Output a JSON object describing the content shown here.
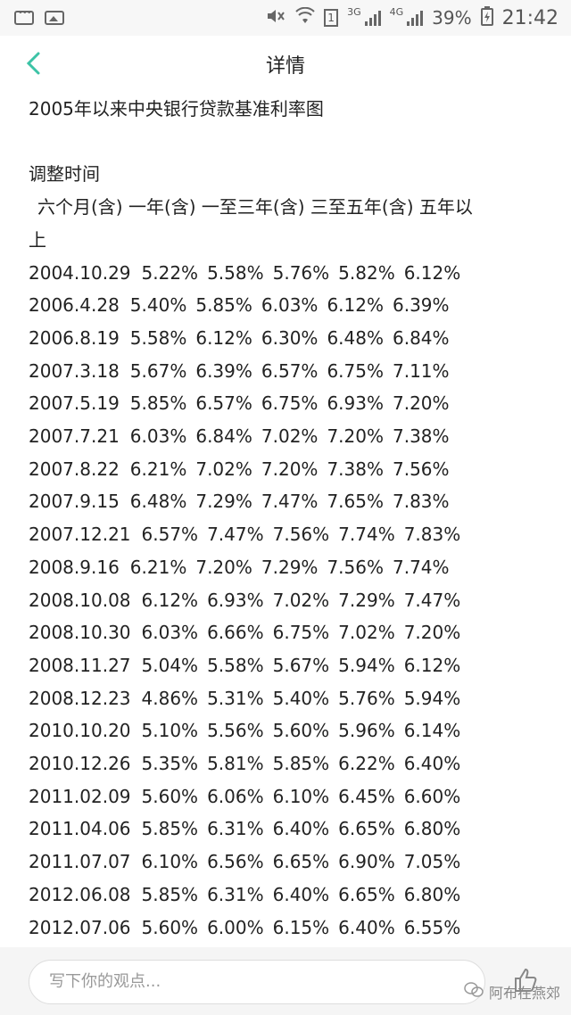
{
  "status_bar": {
    "network_label_1": "3G",
    "network_label_2": "4G",
    "sim_label": "1",
    "battery_percent": "39%",
    "time": "21:42"
  },
  "header": {
    "title": "详情"
  },
  "content": {
    "title": "2005年以来中央银行贷款基准利率图",
    "column_header_1": "调整时间",
    "column_header_2": "六个月(含)  一年(含)  一至三年(含)  三至五年(含)  五年以",
    "column_header_3": "上",
    "rows": [
      {
        "date": "2004.10.29",
        "v1": "5.22%",
        "v2": "5.58%",
        "v3": "5.76%",
        "v4": "5.82%",
        "v5": "6.12%"
      },
      {
        "date": "2006.4.28",
        "v1": "5.40%",
        "v2": "5.85%",
        "v3": "6.03%",
        "v4": "6.12%",
        "v5": "6.39%"
      },
      {
        "date": "2006.8.19",
        "v1": "5.58%",
        "v2": "6.12%",
        "v3": "6.30%",
        "v4": "6.48%",
        "v5": "6.84%"
      },
      {
        "date": "2007.3.18",
        "v1": "5.67%",
        "v2": "6.39%",
        "v3": "6.57%",
        "v4": "6.75%",
        "v5": "7.11%"
      },
      {
        "date": "2007.5.19",
        "v1": "5.85%",
        "v2": "6.57%",
        "v3": "6.75%",
        "v4": "6.93%",
        "v5": "7.20%"
      },
      {
        "date": "2007.7.21",
        "v1": "6.03%",
        "v2": "6.84%",
        "v3": "7.02%",
        "v4": "7.20%",
        "v5": "7.38%"
      },
      {
        "date": "2007.8.22",
        "v1": "6.21%",
        "v2": "7.02%",
        "v3": "7.20%",
        "v4": "7.38%",
        "v5": "7.56%"
      },
      {
        "date": "2007.9.15",
        "v1": "6.48%",
        "v2": "7.29%",
        "v3": "7.47%",
        "v4": "7.65%",
        "v5": "7.83%"
      },
      {
        "date": "2007.12.21",
        "v1": "6.57%",
        "v2": "7.47%",
        "v3": "7.56%",
        "v4": "7.74%",
        "v5": "7.83%"
      },
      {
        "date": "2008.9.16",
        "v1": "6.21%",
        "v2": "7.20%",
        "v3": "7.29%",
        "v4": "7.56%",
        "v5": "7.74%"
      },
      {
        "date": "2008.10.08",
        "v1": "6.12%",
        "v2": "6.93%",
        "v3": "7.02%",
        "v4": "7.29%",
        "v5": "7.47%"
      },
      {
        "date": "2008.10.30",
        "v1": "6.03%",
        "v2": "6.66%",
        "v3": "6.75%",
        "v4": "7.02%",
        "v5": "7.20%"
      },
      {
        "date": "2008.11.27",
        "v1": "5.04%",
        "v2": "5.58%",
        "v3": "5.67%",
        "v4": "5.94%",
        "v5": "6.12%"
      },
      {
        "date": "2008.12.23",
        "v1": "4.86%",
        "v2": "5.31%",
        "v3": "5.40%",
        "v4": "5.76%",
        "v5": "5.94%"
      },
      {
        "date": "2010.10.20",
        "v1": "5.10%",
        "v2": "5.56%",
        "v3": "5.60%",
        "v4": "5.96%",
        "v5": "6.14%"
      },
      {
        "date": "2010.12.26",
        "v1": "5.35%",
        "v2": "5.81%",
        "v3": "5.85%",
        "v4": "6.22%",
        "v5": "6.40%"
      },
      {
        "date": "2011.02.09",
        "v1": "5.60%",
        "v2": "6.06%",
        "v3": "6.10%",
        "v4": "6.45%",
        "v5": "6.60%"
      },
      {
        "date": "2011.04.06",
        "v1": "5.85%",
        "v2": "6.31%",
        "v3": "6.40%",
        "v4": "6.65%",
        "v5": "6.80%"
      },
      {
        "date": "2011.07.07",
        "v1": "6.10%",
        "v2": "6.56%",
        "v3": "6.65%",
        "v4": "6.90%",
        "v5": "7.05%"
      },
      {
        "date": "2012.06.08",
        "v1": "5.85%",
        "v2": "6.31%",
        "v3": "6.40%",
        "v4": "6.65%",
        "v5": "6.80%"
      },
      {
        "date": "2012.07.06",
        "v1": "5.60%",
        "v2": "6.00%",
        "v3": "6.15%",
        "v4": "6.40%",
        "v5": "6.55%"
      }
    ]
  },
  "bottom_bar": {
    "comment_placeholder": "写下你的观点...",
    "watermark_text": "阿布在燕郊"
  },
  "colors": {
    "accent": "#3cc3a6",
    "text": "#222222",
    "placeholder": "#999999"
  }
}
